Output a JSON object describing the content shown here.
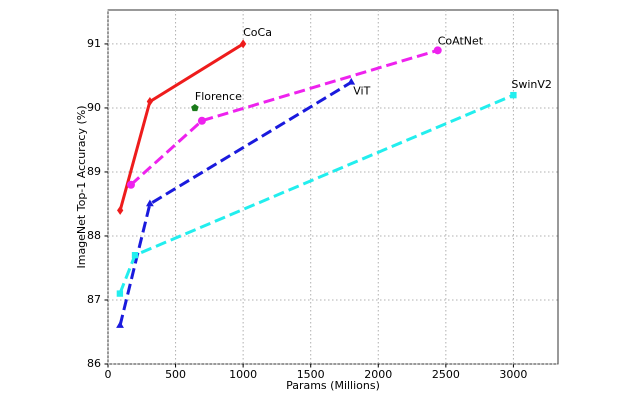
{
  "chart_data": {
    "type": "line",
    "x_label": "Params (Millions)",
    "y_label": "ImageNet Top-1 Accuracy (%)",
    "xlim": [
      0,
      3330
    ],
    "ylim": [
      86,
      91.53
    ],
    "xticks": [
      0,
      500,
      1000,
      1500,
      2000,
      2500,
      3000
    ],
    "yticks": [
      86,
      87,
      88,
      89,
      90,
      91
    ],
    "grid": true,
    "series": [
      {
        "name": "CoCa",
        "color": "#ee1c1c",
        "line_style": "solid",
        "marker": "diamond",
        "x": [
          90,
          310,
          1000
        ],
        "values": [
          88.4,
          90.1,
          91.0
        ]
      },
      {
        "name": "Florence",
        "color": "#1a7a1a",
        "line_style": "none",
        "marker": "pentagon",
        "x": [
          643
        ],
        "values": [
          90.0
        ]
      },
      {
        "name": "CoAtNet",
        "color": "#ee22ee",
        "line_style": "dashed",
        "marker": "circle",
        "x": [
          170,
          695,
          2440
        ],
        "values": [
          88.8,
          89.8,
          90.9
        ]
      },
      {
        "name": "ViT",
        "color": "#1a1add",
        "line_style": "dashed",
        "marker": "triangle",
        "x": [
          89,
          310,
          1800
        ],
        "values": [
          86.6,
          88.5,
          90.4
        ]
      },
      {
        "name": "SwinV2",
        "color": "#22eeee",
        "line_style": "dashed",
        "marker": "square",
        "x": [
          88,
          200,
          3000
        ],
        "values": [
          87.1,
          87.7,
          90.2
        ]
      }
    ]
  }
}
